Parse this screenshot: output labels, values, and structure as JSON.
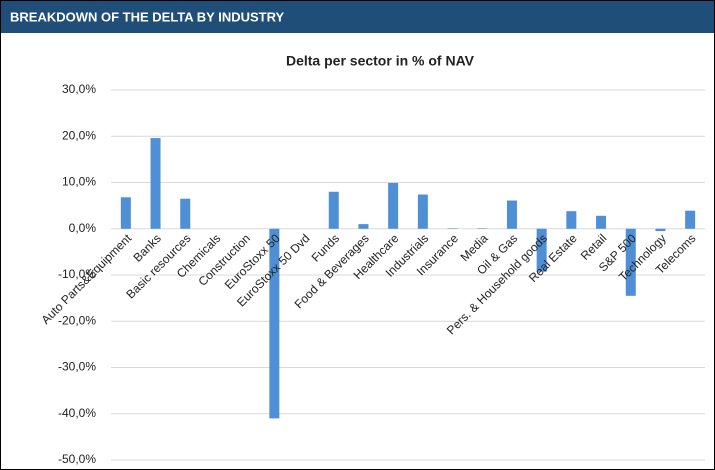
{
  "header": {
    "title": "BREAKDOWN OF THE DELTA BY INDUSTRY"
  },
  "chart_data": {
    "type": "bar",
    "title": "Delta per sector in % of NAV",
    "categories": [
      "Auto Parts&Equipment",
      "Banks",
      "Basic resources",
      "Chemicals",
      "Construction",
      "EuroStoxx 50",
      "EuroStoxx 50 Dvd",
      "Funds",
      "Food & Beverages",
      "Healthcare",
      "Industrials",
      "Insurance",
      "Media",
      "Oil & Gas",
      "Pers. & Household goods",
      "Real Estate",
      "Retail",
      "S&P 500",
      "Technology",
      "Telecoms"
    ],
    "values": [
      6.8,
      19.6,
      6.5,
      0,
      0,
      -41,
      0,
      8.0,
      1.0,
      9.9,
      7.4,
      0.1,
      0.1,
      6.1,
      -9.3,
      3.8,
      2.8,
      -14.5,
      -0.5,
      3.9
    ],
    "color": "#4f8fd6",
    "ylim": [
      -50,
      30
    ],
    "yticks": [
      {
        "value": -50,
        "label": "-50,0%"
      },
      {
        "value": -40,
        "label": "-40,0%"
      },
      {
        "value": -30,
        "label": "-30,0%"
      },
      {
        "value": -20,
        "label": "-20,0%"
      },
      {
        "value": -10,
        "label": "-10,0%"
      },
      {
        "value": 0,
        "label": "0,0%"
      },
      {
        "value": 10,
        "label": "10,0%"
      },
      {
        "value": 20,
        "label": "20,0%"
      },
      {
        "value": 30,
        "label": "30,0%"
      }
    ],
    "grid": true
  }
}
